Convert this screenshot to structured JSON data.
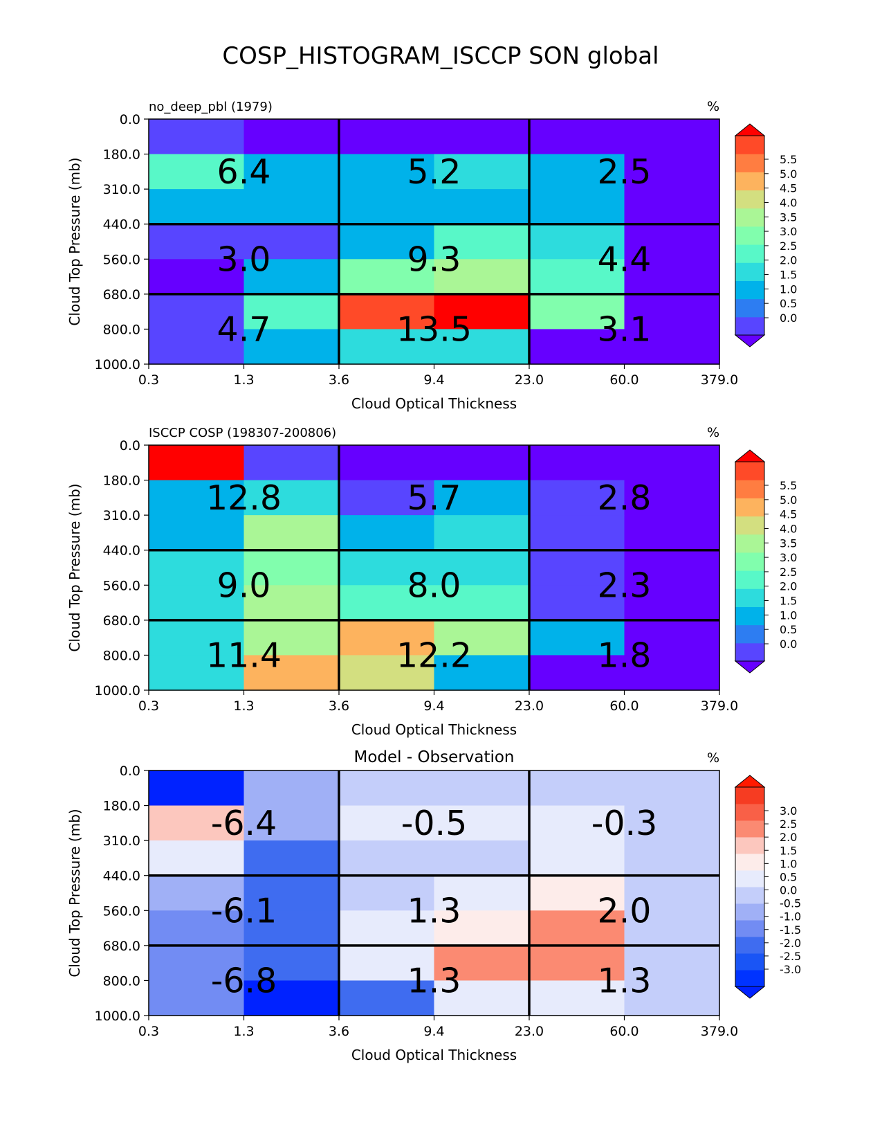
{
  "figure_title": "COSP_HISTOGRAM_ISCCP SON global",
  "chart_data": [
    {
      "type": "heatmap",
      "left_title": "no_deep_pbl (1979)",
      "center_title": "",
      "units": "%",
      "xlabel": "Cloud Optical Thickness",
      "ylabel": "Cloud Top Pressure (mb)",
      "x_ticks": [
        "0.3",
        "1.3",
        "3.6",
        "9.4",
        "23.0",
        "60.0",
        "379.0"
      ],
      "y_ticks": [
        "0.0",
        "180.0",
        "310.0",
        "440.0",
        "560.0",
        "680.0",
        "800.0",
        "1000.0"
      ],
      "cells": [
        [
          0.8,
          0.3,
          0.3,
          0.3,
          0.3,
          0.3
        ],
        [
          2.3,
          1.6,
          1.6,
          2.1,
          1.6,
          0.3
        ],
        [
          1.6,
          1.6,
          1.6,
          1.6,
          1.6,
          0.3
        ],
        [
          0.8,
          0.8,
          1.6,
          2.3,
          2.1,
          0.3
        ],
        [
          0.3,
          1.6,
          2.7,
          3.3,
          2.3,
          0.3
        ],
        [
          0.8,
          2.3,
          4.7,
          5.2,
          2.7,
          0.3
        ],
        [
          0.8,
          1.6,
          2.1,
          2.1,
          0.3,
          0.3
        ]
      ],
      "annotations": [
        [
          "6.4",
          "5.2",
          "2.5"
        ],
        [
          "3.0",
          "9.3",
          "4.4"
        ],
        [
          "4.7",
          "13.5",
          "3.1"
        ]
      ],
      "colorbar": {
        "ticks": [
          "5.5",
          "5.0",
          "4.5",
          "4.0",
          "3.5",
          "3.0",
          "2.5",
          "2.0",
          "1.5",
          "1.0",
          "0.5",
          "0.0"
        ],
        "colors": [
          "#6600ff",
          "#5845ff",
          "#2d7df2",
          "#00b2ea",
          "#2ddcdd",
          "#58f8c8",
          "#81fead",
          "#aaf696",
          "#d3df80",
          "#fdb35e",
          "#ff7d41",
          "#ff4a28",
          "#ff0000"
        ],
        "range": [
          0.0,
          5.5
        ]
      }
    },
    {
      "type": "heatmap",
      "left_title": "ISCCP COSP (198307-200806)",
      "center_title": "",
      "units": "%",
      "xlabel": "Cloud Optical Thickness",
      "ylabel": "Cloud Top Pressure (mb)",
      "x_ticks": [
        "0.3",
        "1.3",
        "3.6",
        "9.4",
        "23.0",
        "60.0",
        "379.0"
      ],
      "y_ticks": [
        "0.0",
        "180.0",
        "310.0",
        "440.0",
        "560.0",
        "680.0",
        "800.0",
        "1000.0"
      ],
      "cells": [
        [
          5.2,
          0.8,
          0.3,
          0.3,
          0.3,
          0.3
        ],
        [
          1.6,
          2.1,
          0.8,
          1.6,
          0.8,
          0.3
        ],
        [
          1.6,
          3.3,
          1.6,
          2.1,
          0.8,
          0.3
        ],
        [
          2.1,
          2.7,
          2.1,
          2.1,
          0.8,
          0.3
        ],
        [
          2.1,
          3.3,
          2.3,
          2.3,
          0.8,
          0.3
        ],
        [
          2.1,
          3.3,
          4.2,
          3.3,
          1.6,
          0.3
        ],
        [
          2.1,
          4.2,
          3.7,
          1.6,
          0.3,
          0.3
        ]
      ],
      "annotations": [
        [
          "12.8",
          "5.7",
          "2.8"
        ],
        [
          "9.0",
          "8.0",
          "2.3"
        ],
        [
          "11.4",
          "12.2",
          "1.8"
        ]
      ],
      "colorbar": {
        "ticks": [
          "5.5",
          "5.0",
          "4.5",
          "4.0",
          "3.5",
          "3.0",
          "2.5",
          "2.0",
          "1.5",
          "1.0",
          "0.5",
          "0.0"
        ],
        "colors": [
          "#6600ff",
          "#5845ff",
          "#2d7df2",
          "#00b2ea",
          "#2ddcdd",
          "#58f8c8",
          "#81fead",
          "#aaf696",
          "#d3df80",
          "#fdb35e",
          "#ff7d41",
          "#ff4a28",
          "#ff0000"
        ],
        "range": [
          0.0,
          5.5
        ]
      }
    },
    {
      "type": "heatmap",
      "left_title": "",
      "center_title": "Model - Observation",
      "units": "%",
      "xlabel": "Cloud Optical Thickness",
      "ylabel": "Cloud Top Pressure (mb)",
      "x_ticks": [
        "0.3",
        "1.3",
        "3.6",
        "9.4",
        "23.0",
        "60.0",
        "379.0"
      ],
      "y_ticks": [
        "0.0",
        "180.0",
        "310.0",
        "440.0",
        "560.0",
        "680.0",
        "800.0",
        "1000.0"
      ],
      "cells": [
        [
          -3.2,
          -0.7,
          -0.2,
          -0.2,
          -0.2,
          -0.2
        ],
        [
          1.3,
          -0.7,
          0.2,
          0.2,
          0.2,
          -0.2
        ],
        [
          0.2,
          -1.8,
          -0.2,
          -0.2,
          0.2,
          -0.2
        ],
        [
          -0.7,
          -1.8,
          -0.2,
          0.2,
          0.7,
          -0.2
        ],
        [
          -1.3,
          -1.8,
          0.2,
          0.7,
          1.8,
          -0.2
        ],
        [
          -1.3,
          -1.8,
          0.2,
          1.8,
          1.8,
          -0.2
        ],
        [
          -1.3,
          -3.2,
          -1.8,
          0.2,
          0.2,
          -0.2
        ]
      ],
      "annotations": [
        [
          "-6.4",
          "-0.5",
          "-0.3"
        ],
        [
          "-6.1",
          "1.3",
          "2.0"
        ],
        [
          "-6.8",
          "1.3",
          "1.3"
        ]
      ],
      "colorbar": {
        "ticks": [
          "3.0",
          "2.5",
          "2.0",
          "1.5",
          "1.0",
          "0.5",
          "0.0",
          "-0.5",
          "-1.0",
          "-1.5",
          "-2.0",
          "-2.5",
          "-3.0"
        ],
        "colors": [
          "#0022ff",
          "#0033ff",
          "#1a55f5",
          "#3f6cf0",
          "#728cf3",
          "#a0b0f6",
          "#c4cefa",
          "#e7ebfc",
          "#fdecea",
          "#fcc7be",
          "#fb8a72",
          "#f96047",
          "#f63c22",
          "#ff1a00"
        ],
        "range": [
          -3.25,
          3.25
        ]
      }
    }
  ]
}
